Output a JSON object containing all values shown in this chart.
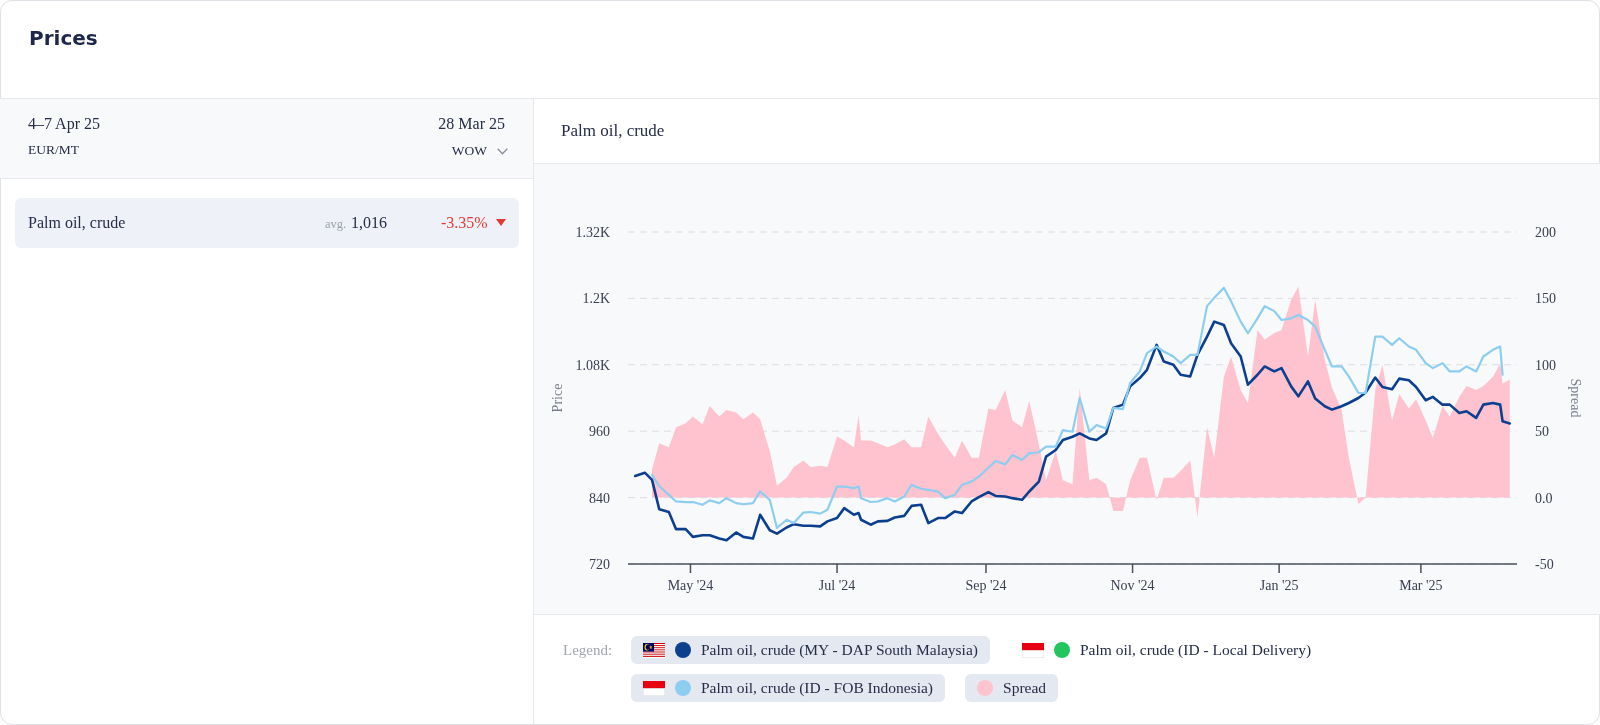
{
  "chart_data": [
    {
      "type": "other",
      "title": "Prices",
      "annotations": [
        "4–7 Apr 25",
        "EUR/MT",
        "28 Mar 25",
        "WOW",
        "Palm oil, crude",
        "avg.",
        "1,016",
        "-3.35%"
      ]
    },
    {
      "type": "line",
      "title": "Palm oil, crude",
      "ylabel": "Price",
      "y2label": "Spread",
      "legend_title": "Legend:",
      "legend": "bottom",
      "grid": "y",
      "marker": "none",
      "xlim": [
        "2024-04-05",
        "2025-04-10"
      ],
      "xticks": [
        {
          "value": "2024-05-01",
          "label": "May '24"
        },
        {
          "value": "2024-07-01",
          "label": "Jul '24"
        },
        {
          "value": "2024-09-01",
          "label": "Sep '24"
        },
        {
          "value": "2024-11-01",
          "label": "Nov '24"
        },
        {
          "value": "2025-01-01",
          "label": "Jan '25"
        },
        {
          "value": "2025-03-01",
          "label": "Mar '25"
        }
      ],
      "ylim": [
        720,
        1320
      ],
      "yticks": [
        720,
        840,
        960,
        {
          "value": 1080,
          "label": "1.08K"
        },
        {
          "value": 1200,
          "label": "1.2K"
        },
        {
          "value": 1320,
          "label": "1.32K"
        }
      ],
      "y2lim": [
        -50,
        200
      ],
      "y2ticks": [
        -50,
        {
          "value": 0,
          "label": "0.0"
        },
        50,
        100,
        150,
        200
      ],
      "x": [
        "2024-04-08",
        "2024-04-12",
        "2024-04-15",
        "2024-04-18",
        "2024-04-22",
        "2024-04-25",
        "2024-04-29",
        "2024-05-02",
        "2024-05-06",
        "2024-05-09",
        "2024-05-13",
        "2024-05-16",
        "2024-05-20",
        "2024-05-23",
        "2024-05-27",
        "2024-05-30",
        "2024-06-03",
        "2024-06-06",
        "2024-06-10",
        "2024-06-13",
        "2024-06-17",
        "2024-06-20",
        "2024-06-24",
        "2024-06-27",
        "2024-07-01",
        "2024-07-04",
        "2024-07-08",
        "2024-07-10",
        "2024-07-11",
        "2024-07-15",
        "2024-07-18",
        "2024-07-22",
        "2024-07-25",
        "2024-07-29",
        "2024-08-01",
        "2024-08-05",
        "2024-08-08",
        "2024-08-12",
        "2024-08-15",
        "2024-08-19",
        "2024-08-22",
        "2024-08-26",
        "2024-08-29",
        "2024-09-02",
        "2024-09-05",
        "2024-09-09",
        "2024-09-12",
        "2024-09-16",
        "2024-09-19",
        "2024-09-23",
        "2024-09-26",
        "2024-09-30",
        "2024-10-03",
        "2024-10-07",
        "2024-10-10",
        "2024-10-14",
        "2024-10-17",
        "2024-10-21",
        "2024-10-24",
        "2024-10-28",
        "2024-10-31",
        "2024-11-04",
        "2024-11-07",
        "2024-11-11",
        "2024-11-14",
        "2024-11-18",
        "2024-11-21",
        "2024-11-25",
        "2024-11-28",
        "2024-12-02",
        "2024-12-05",
        "2024-12-09",
        "2024-12-12",
        "2024-12-16",
        "2024-12-19",
        "2024-12-23",
        "2024-12-26",
        "2024-12-30",
        "2025-01-02",
        "2025-01-06",
        "2025-01-09",
        "2025-01-13",
        "2025-01-16",
        "2025-01-20",
        "2025-01-23",
        "2025-01-27",
        "2025-01-30",
        "2025-02-03",
        "2025-02-06",
        "2025-02-10",
        "2025-02-13",
        "2025-02-17",
        "2025-02-20",
        "2025-02-24",
        "2025-02-27",
        "2025-03-03",
        "2025-03-06",
        "2025-03-10",
        "2025-03-13",
        "2025-03-17",
        "2025-03-20",
        "2025-03-24",
        "2025-03-27",
        "2025-03-31",
        "2025-04-03",
        "2025-04-04",
        "2025-04-07"
      ],
      "series": [
        {
          "name": "Palm oil, crude (MY - DAP South Malaysia)",
          "color": "#0d3f8f",
          "type": "line",
          "values": [
            879,
            885,
            872,
            819,
            814,
            783,
            783,
            769,
            772,
            772,
            766,
            763,
            777,
            769,
            766,
            809,
            781,
            775,
            786,
            792,
            789,
            789,
            788,
            797,
            803,
            821,
            809,
            812,
            800,
            791,
            797,
            798,
            804,
            807,
            825,
            827,
            794,
            803,
            803,
            815,
            812,
            833,
            841,
            850,
            843,
            842,
            839,
            836,
            851,
            869,
            914,
            926,
            944,
            950,
            956,
            947,
            944,
            956,
            1002,
            1008,
            1041,
            1056,
            1071,
            1116,
            1086,
            1080,
            1062,
            1059,
            1098,
            1131,
            1158,
            1152,
            1119,
            1095,
            1044,
            1062,
            1077,
            1068,
            1074,
            1041,
            1023,
            1050,
            1019,
            1005,
            999,
            1005,
            1011,
            1020,
            1030,
            1057,
            1040,
            1036,
            1055,
            1052,
            1040,
            1016,
            1022,
            1008,
            1008,
            993,
            996,
            984,
            1008,
            1011,
            1008,
            978,
            974
          ]
        },
        {
          "name": "Palm oil, crude (ID - Local Delivery)",
          "color": "#22c55e",
          "type": "line",
          "values": [
            null,
            null,
            null,
            null,
            null,
            null,
            null,
            null,
            null,
            null,
            null,
            null,
            null,
            null,
            null,
            null,
            null,
            null,
            null,
            null,
            null,
            null,
            null,
            null,
            null,
            null,
            null,
            null,
            null,
            null,
            null,
            null,
            null,
            null,
            null,
            null,
            null,
            null,
            null,
            null,
            null,
            null,
            null,
            null,
            null,
            null,
            null,
            null,
            null,
            null,
            null,
            null,
            null,
            null,
            null,
            null,
            null,
            null,
            null,
            null,
            null,
            null,
            null,
            null,
            null,
            null,
            null,
            null,
            null,
            null,
            null,
            null,
            null,
            null,
            null,
            null,
            null,
            null,
            null,
            null,
            null,
            null,
            null,
            null,
            null,
            null,
            null,
            null,
            null,
            null,
            null,
            null,
            null,
            null,
            null,
            null,
            null,
            null,
            null,
            null,
            null,
            null,
            null,
            null,
            null,
            null,
            null
          ]
        },
        {
          "name": "Palm oil, crude (ID - FOB Indonesia)",
          "color": "#8dcdf0",
          "type": "line",
          "values": [
            null,
            null,
            881,
            861,
            845,
            833,
            832,
            832,
            827,
            835,
            830,
            839,
            830,
            828,
            830,
            851,
            836,
            785,
            800,
            794,
            813,
            814,
            811,
            818,
            860,
            860,
            857,
            860,
            839,
            832,
            833,
            839,
            833,
            842,
            863,
            856,
            854,
            851,
            839,
            845,
            863,
            869,
            878,
            894,
            906,
            900,
            917,
            908,
            920,
            922,
            932,
            932,
            962,
            959,
            1020,
            959,
            971,
            965,
            1002,
            1000,
            1047,
            1068,
            1101,
            1113,
            1104,
            1095,
            1083,
            1098,
            1098,
            1186,
            1201,
            1219,
            1195,
            1158,
            1137,
            1164,
            1186,
            1177,
            1161,
            1164,
            1170,
            1161,
            1149,
            1107,
            1077,
            1077,
            1059,
            1029,
            1029,
            1131,
            1131,
            1116,
            1128,
            1113,
            1107,
            1083,
            1074,
            1083,
            1068,
            1068,
            1077,
            1068,
            1095,
            1107,
            1113,
            1062,
            null
          ]
        },
        {
          "name": "Spread",
          "color": "#fec3ce",
          "type": "area",
          "axis": "y2",
          "values": [
            null,
            null,
            21,
            41,
            38,
            53,
            56,
            61,
            55,
            69,
            61,
            66,
            64,
            59,
            64,
            59,
            35,
            9,
            15,
            23,
            28,
            23,
            24,
            23,
            46,
            43,
            38,
            62,
            43,
            43,
            41,
            38,
            40,
            44,
            38,
            38,
            61,
            48,
            40,
            30,
            43,
            30,
            30,
            67,
            66,
            81,
            58,
            53,
            73,
            40,
            13,
            35,
            13,
            10,
            83,
            13,
            15,
            10,
            -10,
            -10,
            13,
            30,
            30,
            -2,
            15,
            15,
            20,
            28,
            -15,
            53,
            30,
            91,
            106,
            81,
            71,
            126,
            119,
            124,
            126,
            149,
            159,
            106,
            149,
            104,
            83,
            66,
            30,
            -5,
            0,
            81,
            100,
            58,
            78,
            67,
            74,
            58,
            45,
            69,
            61,
            76,
            84,
            81,
            84,
            91,
            101,
            86,
            89
          ]
        }
      ]
    }
  ]
}
